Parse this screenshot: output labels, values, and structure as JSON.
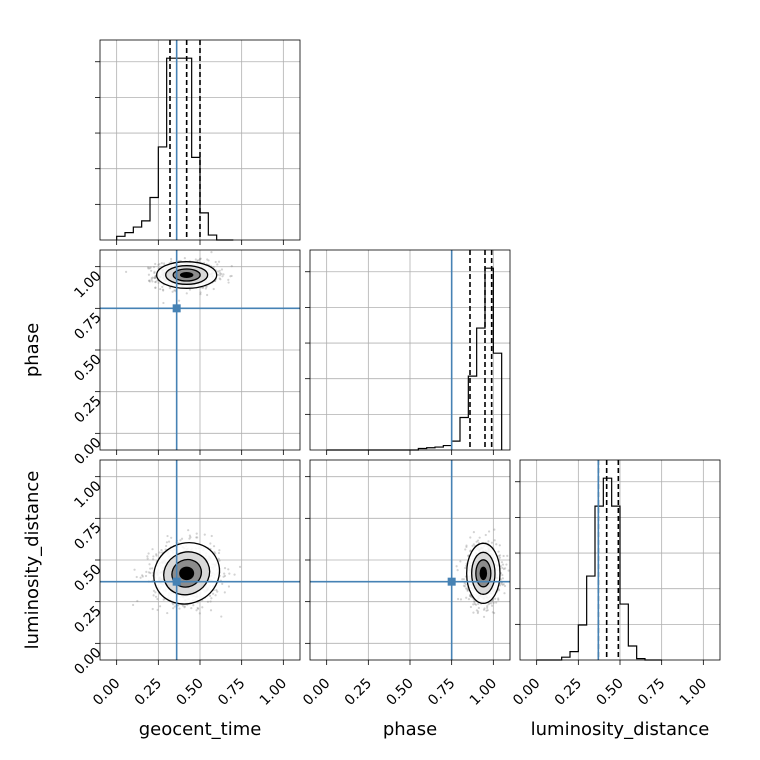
{
  "chart_data": {
    "type": "corner",
    "parameters": [
      "geocent_time",
      "phase",
      "luminosity_distance"
    ],
    "axis_range": [
      -0.1,
      1.1
    ],
    "ticks": [
      0.0,
      0.25,
      0.5,
      0.75,
      1.0
    ],
    "tick_labels": [
      "0.00",
      "0.25",
      "0.50",
      "0.75",
      "1.00"
    ],
    "grid": true,
    "colors": {
      "truth": "#4682b4",
      "hist": "#000000",
      "samples": "#808080"
    },
    "truths": {
      "geocent_time": 0.36,
      "phase": 0.75,
      "luminosity_distance": 0.37
    },
    "quantiles": {
      "geocent_time": [
        0.32,
        0.42,
        0.5
      ],
      "phase": [
        0.86,
        0.95,
        0.99
      ],
      "luminosity_distance": [
        0.37,
        0.42,
        0.49
      ]
    },
    "histograms": {
      "geocent_time": {
        "bin_edges": [
          0.0,
          0.05,
          0.1,
          0.15,
          0.2,
          0.25,
          0.3,
          0.35,
          0.4,
          0.45,
          0.5,
          0.55,
          0.6,
          0.65,
          0.7
        ],
        "counts": [
          0.6,
          1.2,
          2.1,
          3.1,
          6.9,
          15.1,
          29.5,
          29.5,
          29.5,
          13.4,
          4.4,
          0.8,
          0,
          0
        ]
      },
      "phase": {
        "bin_edges": [
          0.0,
          0.05,
          0.1,
          0.15,
          0.2,
          0.25,
          0.3,
          0.35,
          0.4,
          0.45,
          0.5,
          0.55,
          0.6,
          0.65,
          0.7,
          0.75,
          0.8,
          0.85,
          0.9,
          0.95,
          1.0,
          1.05
        ],
        "counts": [
          0,
          0,
          0,
          0,
          0,
          0,
          0,
          0,
          0,
          0,
          0,
          0.2,
          0.3,
          0.4,
          0.6,
          1.2,
          4.4,
          10.0,
          16.5,
          24.6,
          13.1
        ]
      },
      "luminosity_distance": {
        "bin_edges": [
          0.0,
          0.05,
          0.1,
          0.15,
          0.2,
          0.25,
          0.3,
          0.35,
          0.4,
          0.45,
          0.5,
          0.55,
          0.6,
          0.65,
          0.7,
          0.75
        ],
        "counts": [
          0,
          0,
          0,
          0.2,
          0.6,
          2.5,
          6.0,
          11.0,
          13.0,
          11.0,
          4.0,
          1.0,
          0.1,
          0,
          0
        ]
      }
    },
    "posterior_2d": [
      {
        "x": "geocent_time",
        "y": "phase",
        "mean": [
          0.42,
          0.95
        ],
        "sd": [
          0.09,
          0.04
        ],
        "n_samples": 900
      },
      {
        "x": "geocent_time",
        "y": "luminosity_distance",
        "mean": [
          0.42,
          0.42
        ],
        "sd": [
          0.1,
          0.09
        ],
        "n_samples": 900
      },
      {
        "x": "phase",
        "y": "luminosity_distance",
        "mean": [
          0.94,
          0.42
        ],
        "sd": [
          0.05,
          0.09
        ],
        "n_samples": 900
      }
    ]
  }
}
